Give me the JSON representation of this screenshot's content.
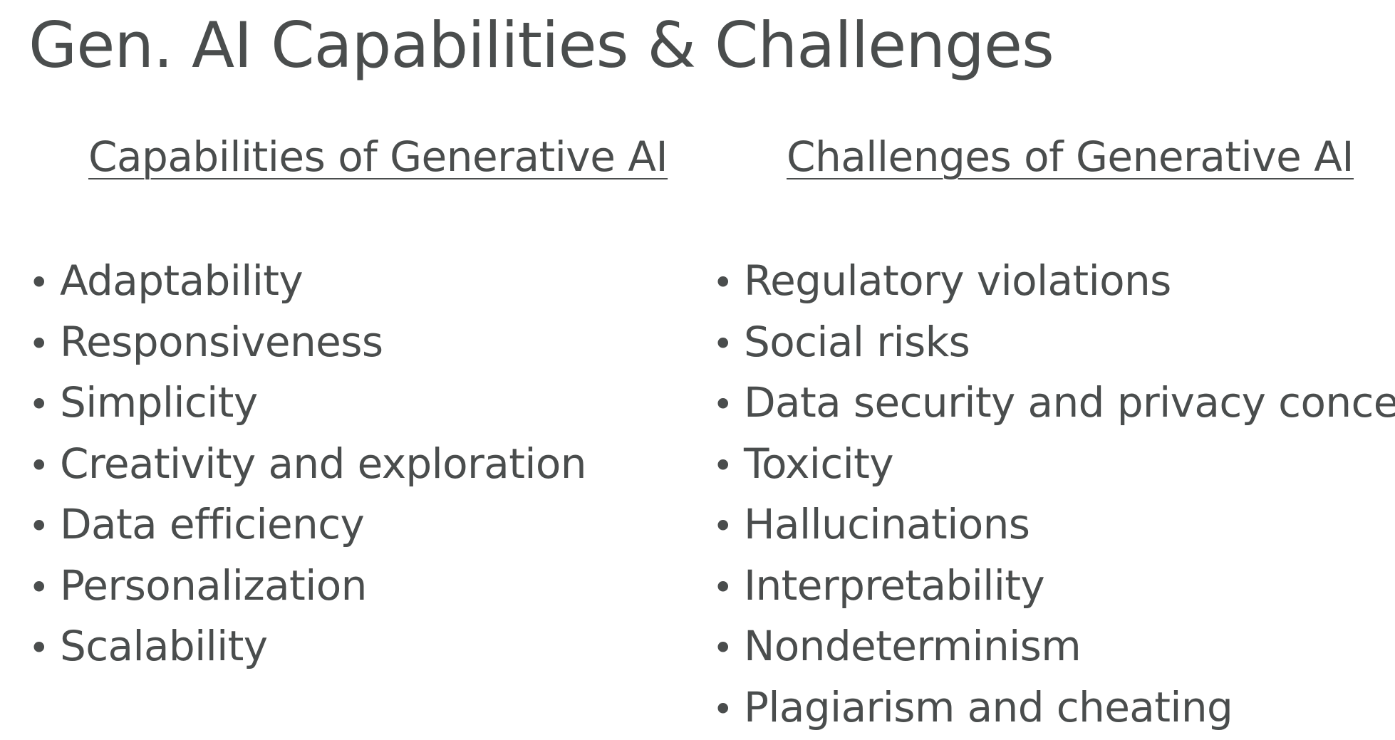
{
  "slide": {
    "title": "Gen. AI Capabilities & Challenges",
    "capabilities": {
      "heading": "Capabilities of Generative AI",
      "items": [
        "Adaptability",
        "Responsiveness",
        "Simplicity",
        "Creativity and exploration",
        "Data efficiency",
        "Personalization",
        "Scalability"
      ]
    },
    "challenges": {
      "heading": "Challenges of Generative AI",
      "items": [
        "Regulatory violations",
        "Social risks",
        "Data security and privacy concerns",
        "Toxicity",
        "Hallucinations",
        "Interpretability",
        "Nondeterminism",
        "Plagiarism and cheating"
      ]
    },
    "bullet_glyph": "•",
    "colors": {
      "text": "#4a4d4d",
      "background": "#ffffff"
    }
  }
}
